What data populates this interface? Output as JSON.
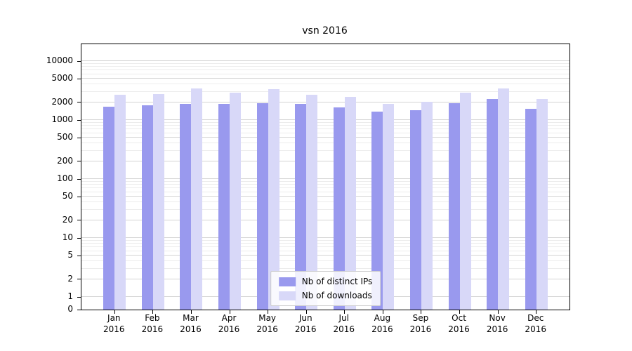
{
  "chart_data": {
    "type": "bar",
    "title": "vsn 2016",
    "categories": [
      "Jan 2016",
      "Feb 2016",
      "Mar 2016",
      "Apr 2016",
      "May 2016",
      "Jun 2016",
      "Jul 2016",
      "Aug 2016",
      "Sep 2016",
      "Oct 2016",
      "Nov 2016",
      "Dec 2016"
    ],
    "series": [
      {
        "name": "Nb of distinct IPs",
        "color": "#9999ee",
        "values": [
          1700,
          1800,
          1900,
          1900,
          1950,
          1900,
          1650,
          1400,
          1450,
          1950,
          2250,
          1550
        ]
      },
      {
        "name": "Nb of downloads",
        "color": "#d8d8f8",
        "values": [
          2700,
          2750,
          3400,
          2950,
          3300,
          2700,
          2500,
          1900,
          2050,
          2950,
          3400,
          2300
        ]
      }
    ],
    "xlabel": "",
    "ylabel": "",
    "yscale": "symlog",
    "yticks": [
      0,
      1,
      2,
      5,
      10,
      20,
      50,
      100,
      200,
      500,
      1000,
      2000,
      5000,
      10000
    ],
    "ylim": [
      0,
      19000
    ],
    "grid": true,
    "legend_position": "lower center"
  }
}
